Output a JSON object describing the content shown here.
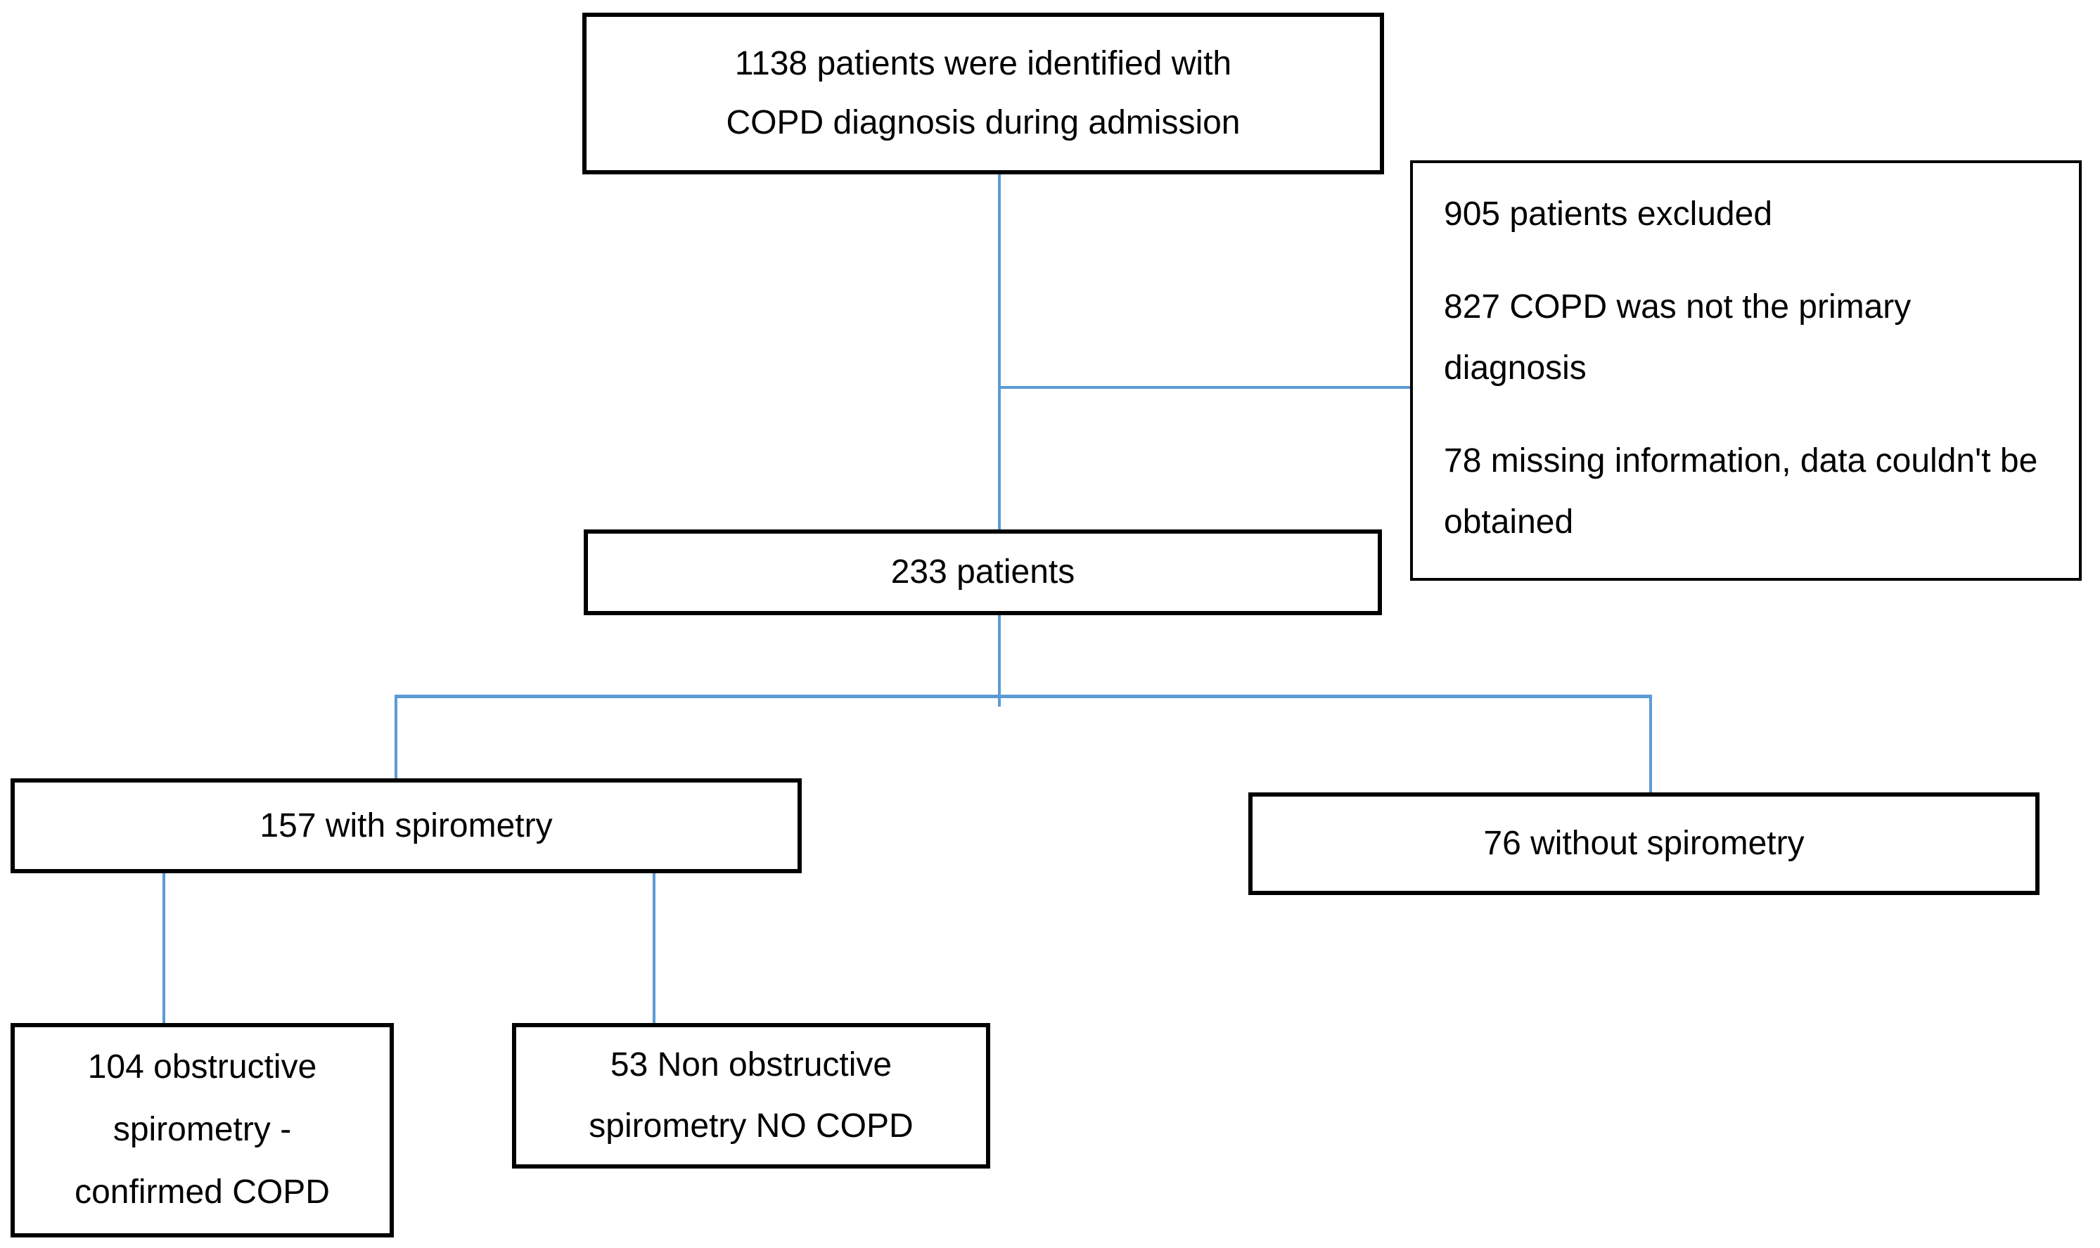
{
  "diagram": {
    "type": "patient-flowchart",
    "colors": {
      "connector_blue": "#5B9BD5",
      "box_border": "#000000",
      "background": "#FFFFFF"
    },
    "nodes": {
      "identified": {
        "lines": [
          "1138 patients were identified with",
          "COPD diagnosis during admission"
        ]
      },
      "excluded": {
        "paragraphs": [
          "905 patients excluded",
          "827 COPD was not the primary diagnosis",
          "78 missing information, data couldn't be obtained"
        ]
      },
      "cohort": {
        "text": "233 patients"
      },
      "with_spirometry": {
        "text": "157 with spirometry"
      },
      "without_spirometry": {
        "text": "76 without spirometry"
      },
      "obstructive": {
        "lines": [
          "104 obstructive",
          "spirometry -",
          "confirmed COPD"
        ]
      },
      "non_obstructive": {
        "lines": [
          "53 Non obstructive",
          "spirometry NO COPD"
        ]
      }
    }
  }
}
